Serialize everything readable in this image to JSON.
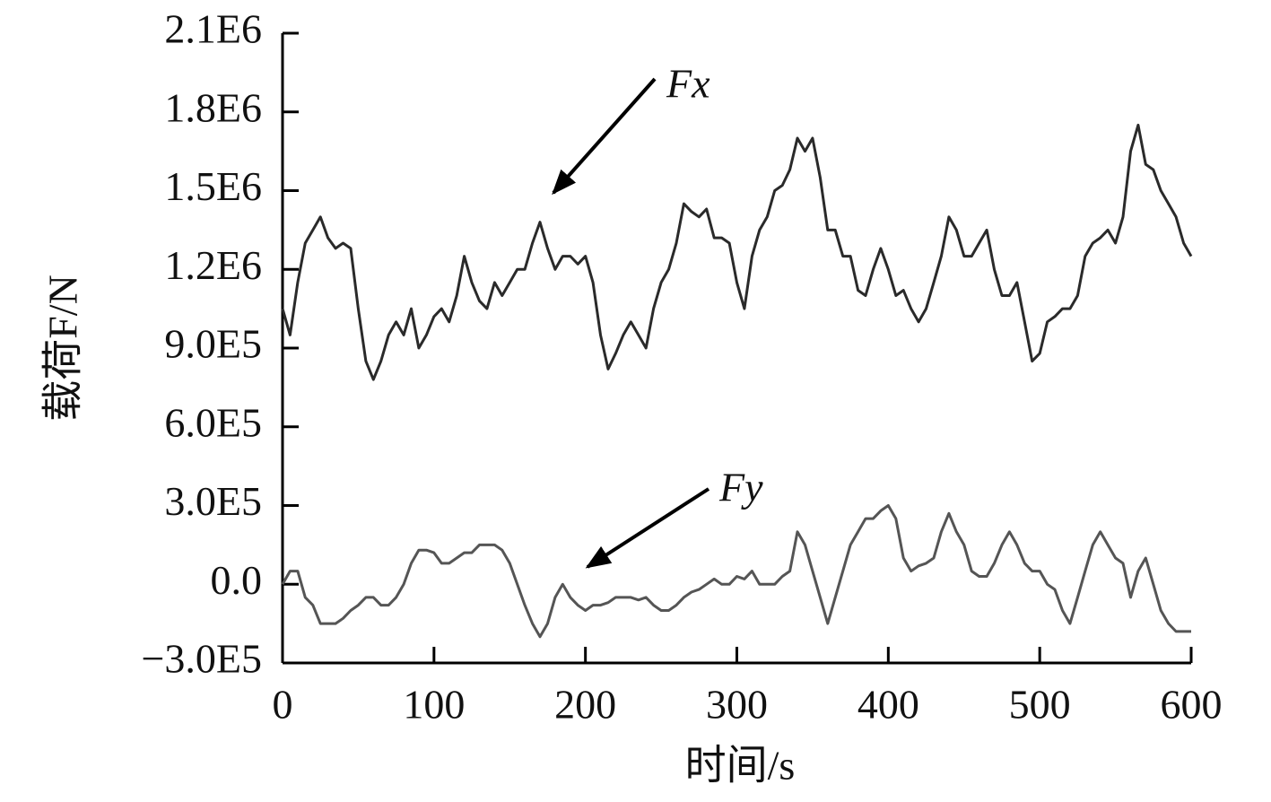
{
  "chart_data": {
    "type": "line",
    "x_label": "时间/s",
    "y_label": "载荷F/N",
    "x": [
      0,
      5,
      10,
      15,
      20,
      25,
      30,
      35,
      40,
      45,
      50,
      55,
      60,
      65,
      70,
      75,
      80,
      85,
      90,
      95,
      100,
      105,
      110,
      115,
      120,
      125,
      130,
      135,
      140,
      145,
      150,
      155,
      160,
      165,
      170,
      175,
      180,
      185,
      190,
      195,
      200,
      205,
      210,
      215,
      220,
      225,
      230,
      235,
      240,
      245,
      250,
      255,
      260,
      265,
      270,
      275,
      280,
      285,
      290,
      295,
      300,
      305,
      310,
      315,
      320,
      325,
      330,
      335,
      340,
      345,
      350,
      355,
      360,
      365,
      370,
      375,
      380,
      385,
      390,
      395,
      400,
      405,
      410,
      415,
      420,
      425,
      430,
      435,
      440,
      445,
      450,
      455,
      460,
      465,
      470,
      475,
      480,
      485,
      490,
      495,
      500,
      505,
      510,
      515,
      520,
      525,
      530,
      535,
      540,
      545,
      550,
      555,
      560,
      565,
      570,
      575,
      580,
      585,
      590,
      595,
      600
    ],
    "series": [
      {
        "name": "Fx",
        "color": "#2a2a2a",
        "values": [
          1050000.0,
          950000.0,
          1150000.0,
          1300000.0,
          1350000.0,
          1400000.0,
          1320000.0,
          1280000.0,
          1300000.0,
          1280000.0,
          1050000.0,
          850000.0,
          780000.0,
          850000.0,
          950000.0,
          1000000.0,
          950000.0,
          1050000.0,
          900000.0,
          950000.0,
          1020000.0,
          1050000.0,
          1000000.0,
          1100000.0,
          1250000.0,
          1150000.0,
          1080000.0,
          1050000.0,
          1150000.0,
          1100000.0,
          1150000.0,
          1200000.0,
          1200000.0,
          1300000.0,
          1380000.0,
          1280000.0,
          1200000.0,
          1250000.0,
          1250000.0,
          1220000.0,
          1250000.0,
          1150000.0,
          950000.0,
          820000.0,
          880000.0,
          950000.0,
          1000000.0,
          950000.0,
          900000.0,
          1050000.0,
          1150000.0,
          1200000.0,
          1300000.0,
          1450000.0,
          1420000.0,
          1400000.0,
          1430000.0,
          1320000.0,
          1320000.0,
          1300000.0,
          1150000.0,
          1050000.0,
          1250000.0,
          1350000.0,
          1400000.0,
          1500000.0,
          1520000.0,
          1580000.0,
          1700000.0,
          1650000.0,
          1700000.0,
          1550000.0,
          1350000.0,
          1350000.0,
          1250000.0,
          1250000.0,
          1120000.0,
          1100000.0,
          1200000.0,
          1280000.0,
          1200000.0,
          1100000.0,
          1120000.0,
          1050000.0,
          1000000.0,
          1050000.0,
          1150000.0,
          1250000.0,
          1400000.0,
          1350000.0,
          1250000.0,
          1250000.0,
          1300000.0,
          1350000.0,
          1200000.0,
          1100000.0,
          1100000.0,
          1150000.0,
          1000000.0,
          850000.0,
          880000.0,
          1000000.0,
          1020000.0,
          1050000.0,
          1050000.0,
          1100000.0,
          1250000.0,
          1300000.0,
          1320000.0,
          1350000.0,
          1300000.0,
          1400000.0,
          1650000.0,
          1750000.0,
          1600000.0,
          1580000.0,
          1500000.0,
          1450000.0,
          1400000.0,
          1300000.0,
          1250000.0
        ]
      },
      {
        "name": "Fy",
        "color": "#555555",
        "values": [
          0,
          50000.0,
          50000.0,
          -50000.0,
          -80000.0,
          -150000.0,
          -150000.0,
          -150000.0,
          -130000.0,
          -100000.0,
          -80000.0,
          -50000.0,
          -50000.0,
          -80000.0,
          -80000.0,
          -50000.0,
          0,
          80000.0,
          130000.0,
          130000.0,
          120000.0,
          80000.0,
          80000.0,
          100000.0,
          120000.0,
          120000.0,
          150000.0,
          150000.0,
          150000.0,
          130000.0,
          80000.0,
          0,
          -80000.0,
          -150000.0,
          -200000.0,
          -150000.0,
          -50000.0,
          0,
          -50000.0,
          -80000.0,
          -100000.0,
          -80000.0,
          -80000.0,
          -70000.0,
          -50000.0,
          -50000.0,
          -50000.0,
          -60000.0,
          -50000.0,
          -80000.0,
          -100000.0,
          -100000.0,
          -80000.0,
          -50000.0,
          -30000.0,
          -20000.0,
          0,
          20000.0,
          0,
          0,
          30000.0,
          20000.0,
          50000.0,
          0,
          0,
          0,
          30000.0,
          50000.0,
          200000.0,
          150000.0,
          50000.0,
          -50000.0,
          -150000.0,
          -50000.0,
          50000.0,
          150000.0,
          200000.0,
          250000.0,
          250000.0,
          280000.0,
          300000.0,
          250000.0,
          100000.0,
          50000.0,
          70000.0,
          80000.0,
          100000.0,
          200000.0,
          270000.0,
          200000.0,
          150000.0,
          50000.0,
          30000.0,
          30000.0,
          80000.0,
          150000.0,
          200000.0,
          150000.0,
          80000.0,
          50000.0,
          50000.0,
          0,
          -20000.0,
          -100000.0,
          -150000.0,
          -50000.0,
          50000.0,
          150000.0,
          200000.0,
          150000.0,
          100000.0,
          80000.0,
          -50000.0,
          50000.0,
          100000.0,
          0,
          -100000.0,
          -150000.0,
          -180000.0,
          -180000.0,
          -180000.0
        ]
      }
    ],
    "xlim": [
      0,
      600
    ],
    "xticks": [
      0,
      100,
      200,
      300,
      400,
      500,
      600
    ],
    "ylim": [
      -300000,
      2100000
    ],
    "yticks": [
      {
        "value": -300000,
        "label": "−3.0E5"
      },
      {
        "value": 0,
        "label": "0.0"
      },
      {
        "value": 300000,
        "label": "3.0E5"
      },
      {
        "value": 600000,
        "label": "6.0E5"
      },
      {
        "value": 900000,
        "label": "9.0E5"
      },
      {
        "value": 1200000,
        "label": "1.2E6"
      },
      {
        "value": 1500000,
        "label": "1.5E6"
      },
      {
        "value": 1800000,
        "label": "1.8E6"
      },
      {
        "value": 2100000,
        "label": "2.1E6"
      }
    ]
  }
}
